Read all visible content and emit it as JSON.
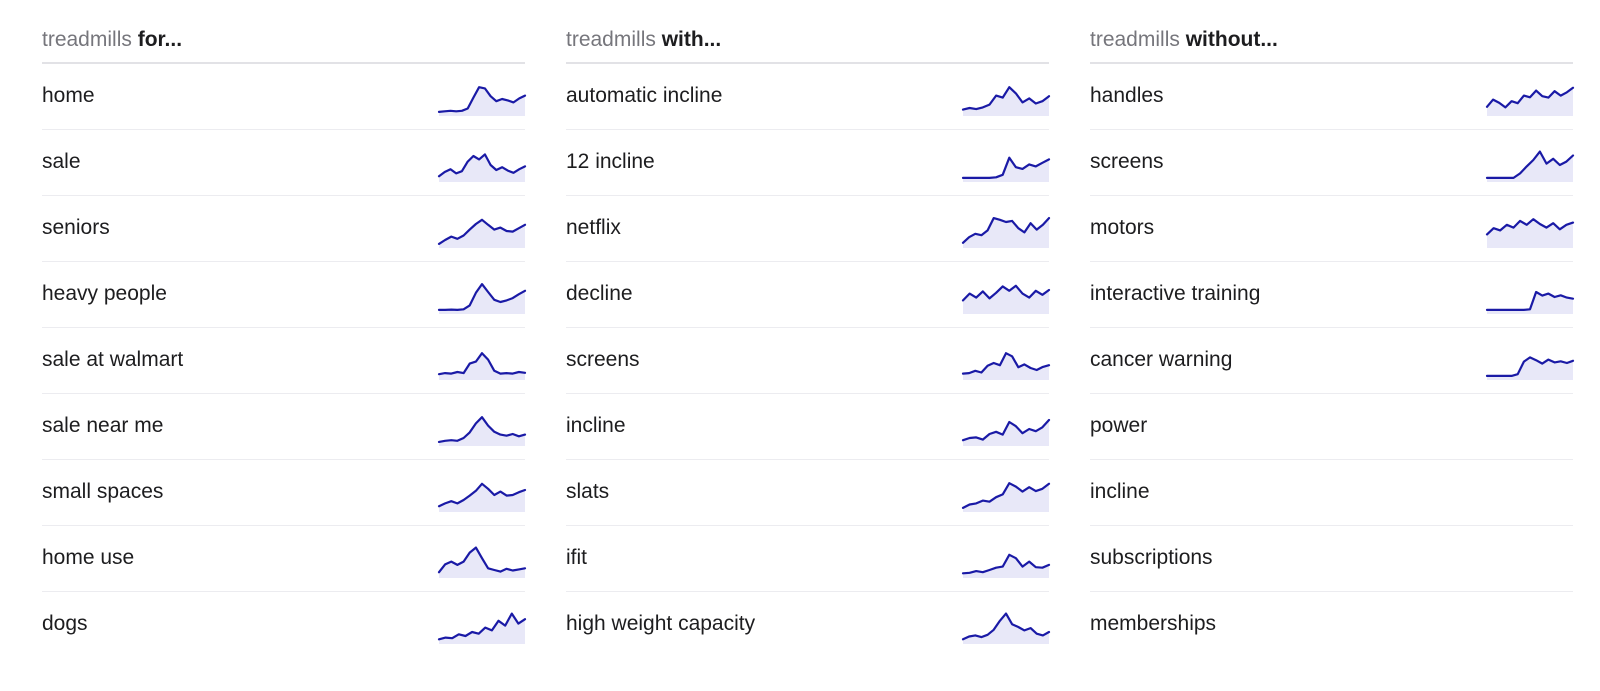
{
  "line_color": "#1a1aa6",
  "fill_color": "#e8e8f8",
  "columns": [
    {
      "prefix": "treadmills",
      "suffix": "for...",
      "rows": [
        {
          "label": "home",
          "trend": [
            0.04,
            0.06,
            0.08,
            0.06,
            0.08,
            0.16,
            0.55,
            0.92,
            0.88,
            0.6,
            0.42,
            0.5,
            0.45,
            0.38,
            0.52,
            0.62
          ]
        },
        {
          "label": "sale",
          "trend": [
            0.1,
            0.25,
            0.35,
            0.2,
            0.28,
            0.62,
            0.82,
            0.7,
            0.88,
            0.5,
            0.32,
            0.42,
            0.3,
            0.22,
            0.35,
            0.45
          ]
        },
        {
          "label": "seniors",
          "trend": [
            0.04,
            0.18,
            0.3,
            0.22,
            0.34,
            0.55,
            0.75,
            0.9,
            0.72,
            0.55,
            0.62,
            0.5,
            0.48,
            0.6,
            0.72
          ]
        },
        {
          "label": "heavy people",
          "trend": [
            0.04,
            0.04,
            0.05,
            0.04,
            0.06,
            0.2,
            0.65,
            0.96,
            0.68,
            0.4,
            0.32,
            0.38,
            0.46,
            0.6,
            0.72
          ]
        },
        {
          "label": "sale at walmart",
          "trend": [
            0.1,
            0.14,
            0.12,
            0.18,
            0.14,
            0.48,
            0.55,
            0.85,
            0.62,
            0.22,
            0.12,
            0.14,
            0.12,
            0.18,
            0.15
          ]
        },
        {
          "label": "sale near me",
          "trend": [
            0.04,
            0.08,
            0.1,
            0.08,
            0.18,
            0.38,
            0.7,
            0.92,
            0.62,
            0.4,
            0.3,
            0.26,
            0.32,
            0.24,
            0.3
          ]
        },
        {
          "label": "small spaces",
          "trend": [
            0.1,
            0.2,
            0.28,
            0.2,
            0.32,
            0.48,
            0.65,
            0.9,
            0.72,
            0.5,
            0.62,
            0.48,
            0.5,
            0.6,
            0.68
          ]
        },
        {
          "label": "home use",
          "trend": [
            0.1,
            0.38,
            0.48,
            0.36,
            0.48,
            0.8,
            0.98,
            0.6,
            0.24,
            0.18,
            0.12,
            0.22,
            0.16,
            0.2,
            0.24
          ]
        },
        {
          "label": "dogs",
          "trend": [
            0.06,
            0.12,
            0.1,
            0.24,
            0.18,
            0.32,
            0.26,
            0.48,
            0.38,
            0.72,
            0.55,
            0.98,
            0.62,
            0.78
          ]
        }
      ]
    },
    {
      "prefix": "treadmills",
      "suffix": "with...",
      "rows": [
        {
          "label": "automatic incline",
          "trend": [
            0.12,
            0.18,
            0.14,
            0.2,
            0.3,
            0.62,
            0.55,
            0.92,
            0.7,
            0.38,
            0.52,
            0.34,
            0.42,
            0.6
          ]
        },
        {
          "label": "12 incline",
          "trend": [
            0.04,
            0.04,
            0.04,
            0.04,
            0.04,
            0.06,
            0.15,
            0.76,
            0.42,
            0.36,
            0.52,
            0.45,
            0.58,
            0.7
          ]
        },
        {
          "label": "netflix",
          "trend": [
            0.08,
            0.28,
            0.4,
            0.35,
            0.52,
            0.96,
            0.9,
            0.82,
            0.86,
            0.6,
            0.45,
            0.78,
            0.55,
            0.72,
            0.96
          ]
        },
        {
          "label": "decline",
          "trend": [
            0.38,
            0.62,
            0.48,
            0.7,
            0.45,
            0.65,
            0.88,
            0.72,
            0.9,
            0.62,
            0.48,
            0.72,
            0.58,
            0.75
          ]
        },
        {
          "label": "screens",
          "trend": [
            0.12,
            0.14,
            0.22,
            0.16,
            0.4,
            0.5,
            0.42,
            0.85,
            0.74,
            0.35,
            0.45,
            0.32,
            0.25,
            0.36,
            0.42
          ]
        },
        {
          "label": "incline",
          "trend": [
            0.1,
            0.18,
            0.2,
            0.12,
            0.32,
            0.4,
            0.3,
            0.75,
            0.6,
            0.35,
            0.5,
            0.42,
            0.56,
            0.82
          ]
        },
        {
          "label": "slats",
          "trend": [
            0.04,
            0.16,
            0.2,
            0.3,
            0.26,
            0.42,
            0.52,
            0.92,
            0.8,
            0.62,
            0.78,
            0.64,
            0.72,
            0.9
          ]
        },
        {
          "label": "ifit",
          "trend": [
            0.06,
            0.08,
            0.14,
            0.1,
            0.18,
            0.26,
            0.3,
            0.72,
            0.6,
            0.3,
            0.48,
            0.28,
            0.26,
            0.36
          ]
        },
        {
          "label": "high weight capacity",
          "trend": [
            0.06,
            0.16,
            0.2,
            0.14,
            0.22,
            0.4,
            0.72,
            0.98,
            0.6,
            0.5,
            0.38,
            0.46,
            0.26,
            0.2,
            0.32
          ]
        }
      ]
    },
    {
      "prefix": "treadmills",
      "suffix": "without...",
      "rows": [
        {
          "label": "handles",
          "trend": [
            0.22,
            0.48,
            0.36,
            0.2,
            0.42,
            0.35,
            0.62,
            0.56,
            0.8,
            0.6,
            0.55,
            0.78,
            0.62,
            0.74,
            0.9
          ]
        },
        {
          "label": "screens",
          "trend": [
            0.04,
            0.04,
            0.04,
            0.04,
            0.04,
            0.2,
            0.45,
            0.68,
            0.98,
            0.55,
            0.72,
            0.5,
            0.62,
            0.84
          ]
        },
        {
          "label": "motors",
          "trend": [
            0.38,
            0.6,
            0.52,
            0.72,
            0.62,
            0.86,
            0.72,
            0.92,
            0.75,
            0.62,
            0.78,
            0.56,
            0.72,
            0.8
          ]
        },
        {
          "label": "interactive training",
          "trend": [
            0.04,
            0.04,
            0.04,
            0.04,
            0.04,
            0.04,
            0.04,
            0.06,
            0.68,
            0.55,
            0.62,
            0.5,
            0.56,
            0.48,
            0.44
          ]
        },
        {
          "label": "cancer warning",
          "trend": [
            0.04,
            0.04,
            0.04,
            0.04,
            0.04,
            0.1,
            0.55,
            0.7,
            0.6,
            0.48,
            0.62,
            0.52,
            0.56,
            0.5,
            0.58
          ]
        },
        {
          "label": "power",
          "trend": []
        },
        {
          "label": "incline",
          "trend": []
        },
        {
          "label": "subscriptions",
          "trend": []
        },
        {
          "label": "memberships",
          "trend": []
        }
      ]
    }
  ]
}
